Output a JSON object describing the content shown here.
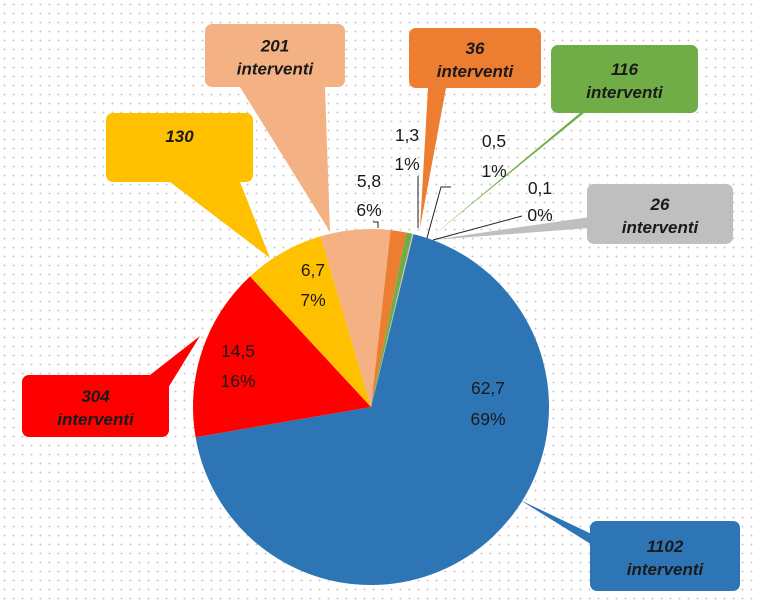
{
  "chart_data": {
    "type": "pie",
    "title": "",
    "slices": [
      {
        "value": 62.7,
        "percent": "69%",
        "label_value": "62,7",
        "count": "1102",
        "unit": "interventi",
        "color": "#2E75B6"
      },
      {
        "value": 14.5,
        "percent": "16%",
        "label_value": "14,5",
        "count": "304",
        "unit": "interventi",
        "color": "#FF0000"
      },
      {
        "value": 6.7,
        "percent": "7%",
        "label_value": "6,7",
        "count": "130",
        "unit": "",
        "color": "#FFC000"
      },
      {
        "value": 5.8,
        "percent": "6%",
        "label_value": "5,8",
        "count": "201",
        "unit": "interventi",
        "color": "#F4B183"
      },
      {
        "value": 1.3,
        "percent": "1%",
        "label_value": "1,3",
        "count": "36",
        "unit": "interventi",
        "color": "#ED7D31"
      },
      {
        "value": 0.5,
        "percent": "1%",
        "label_value": "0,5",
        "count": "116",
        "unit": "interventi",
        "color": "#70AD47"
      },
      {
        "value": 0.1,
        "percent": "0%",
        "label_value": "0,1",
        "count": "26",
        "unit": "interventi",
        "color": "#BFBFBF"
      }
    ],
    "grid": false,
    "legend": "none"
  }
}
